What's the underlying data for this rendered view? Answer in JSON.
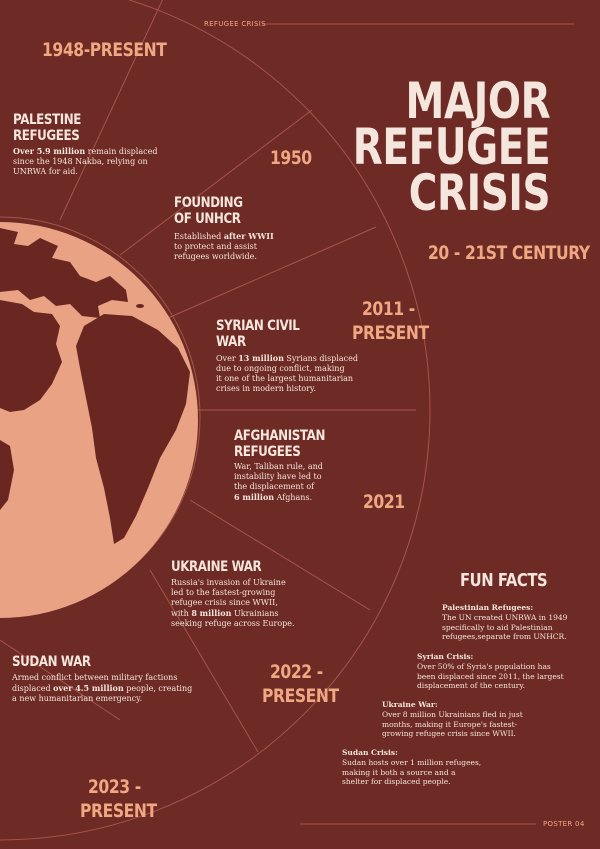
{
  "header": {
    "tag": "REFUGEE CRISIS"
  },
  "footer": {
    "tag": "POSTER 04"
  },
  "title": {
    "lines": [
      "MAJOR",
      "REFUGEE",
      "CRISIS"
    ],
    "subtitle": "20 - 21ST CENTURY"
  },
  "years": {
    "y1948": "1948-PRESENT",
    "y1950": "1950",
    "y2011_a": "2011 -",
    "y2011_b": "PRESENT",
    "y2021": "2021",
    "y2022_a": "2022 -",
    "y2022_b": "PRESENT",
    "y2023_a": "2023 -",
    "y2023_b": "PRESENT"
  },
  "events": {
    "palestine": {
      "title_1": "PALESTINE",
      "title_2": "REFUGEES",
      "bold": "Over 5.9 million",
      "text_1": " remain displaced",
      "text_2": "since the 1948 Nakba, relying on",
      "text_3": "UNRWA for aid."
    },
    "unhcr": {
      "title_1": "FOUNDING",
      "title_2": "OF UNHCR",
      "text_a": "Established ",
      "bold": "after WWII",
      "text_2": "to protect and assist",
      "text_3": "refugees worldwide."
    },
    "syria": {
      "title_1": "SYRIAN CIVIL",
      "title_2": "WAR",
      "text_a": "Over ",
      "bold": "13 million",
      "text_b": " Syrians displaced",
      "text_2": "due to ongoing conflict, making",
      "text_3": "it one of the largest humanitarian",
      "text_4": "crises in modern history."
    },
    "afghanistan": {
      "title_1": "AFGHANISTAN",
      "title_2": "REFUGEES",
      "text_1": "War, Taliban rule, and",
      "text_2": "instability have led to",
      "text_3": "the displacement of",
      "bold": "6 million",
      "text_4": " Afghans."
    },
    "ukraine": {
      "title_1": "UKRAINE WAR",
      "text_1": "Russia's invasion of Ukraine",
      "text_2": "led to the fastest-growing",
      "text_3": "refugee crisis since WWII,",
      "text_4a": "with ",
      "bold": "8 million",
      "text_4b": " Ukrainians",
      "text_5": "seeking refuge across Europe."
    },
    "sudan": {
      "title_1": "SUDAN WAR",
      "text_1": "Armed conflict between military factions",
      "text_2a": "displaced ",
      "bold": "over 4.5 million",
      "text_2b": " people, creating",
      "text_3": "a new humanitarian emergency."
    }
  },
  "fun_facts": {
    "heading": "FUN FACTS",
    "items": [
      {
        "title": "Palestinian Refugees:",
        "lines": [
          "The UN created UNRWA in 1949",
          "specifically to aid Palestinian",
          "refugees,separate from UNHCR."
        ]
      },
      {
        "title": "Syrian Crisis:",
        "lines": [
          "Over 50% of Syria's population has",
          "been displaced since 2011, the largest",
          "displacement of the century."
        ]
      },
      {
        "title": "Ukraine War:",
        "lines": [
          "Over 8 million Ukrainians fled in just",
          "months, making it Europe's fastest-",
          "growing refugee crisis since WWII."
        ]
      },
      {
        "title": "Sudan Crisis:",
        "lines": [
          "Sudan hosts over 1 million refugees,",
          "making it both a source and a",
          "shelter for displaced people."
        ]
      }
    ]
  },
  "colors": {
    "background": "#6e2a24",
    "globe": "#e9a283",
    "continents": "#6a2620",
    "lines": "#a5564a",
    "accent": "#f0a882",
    "text": "#f4e6dc"
  }
}
